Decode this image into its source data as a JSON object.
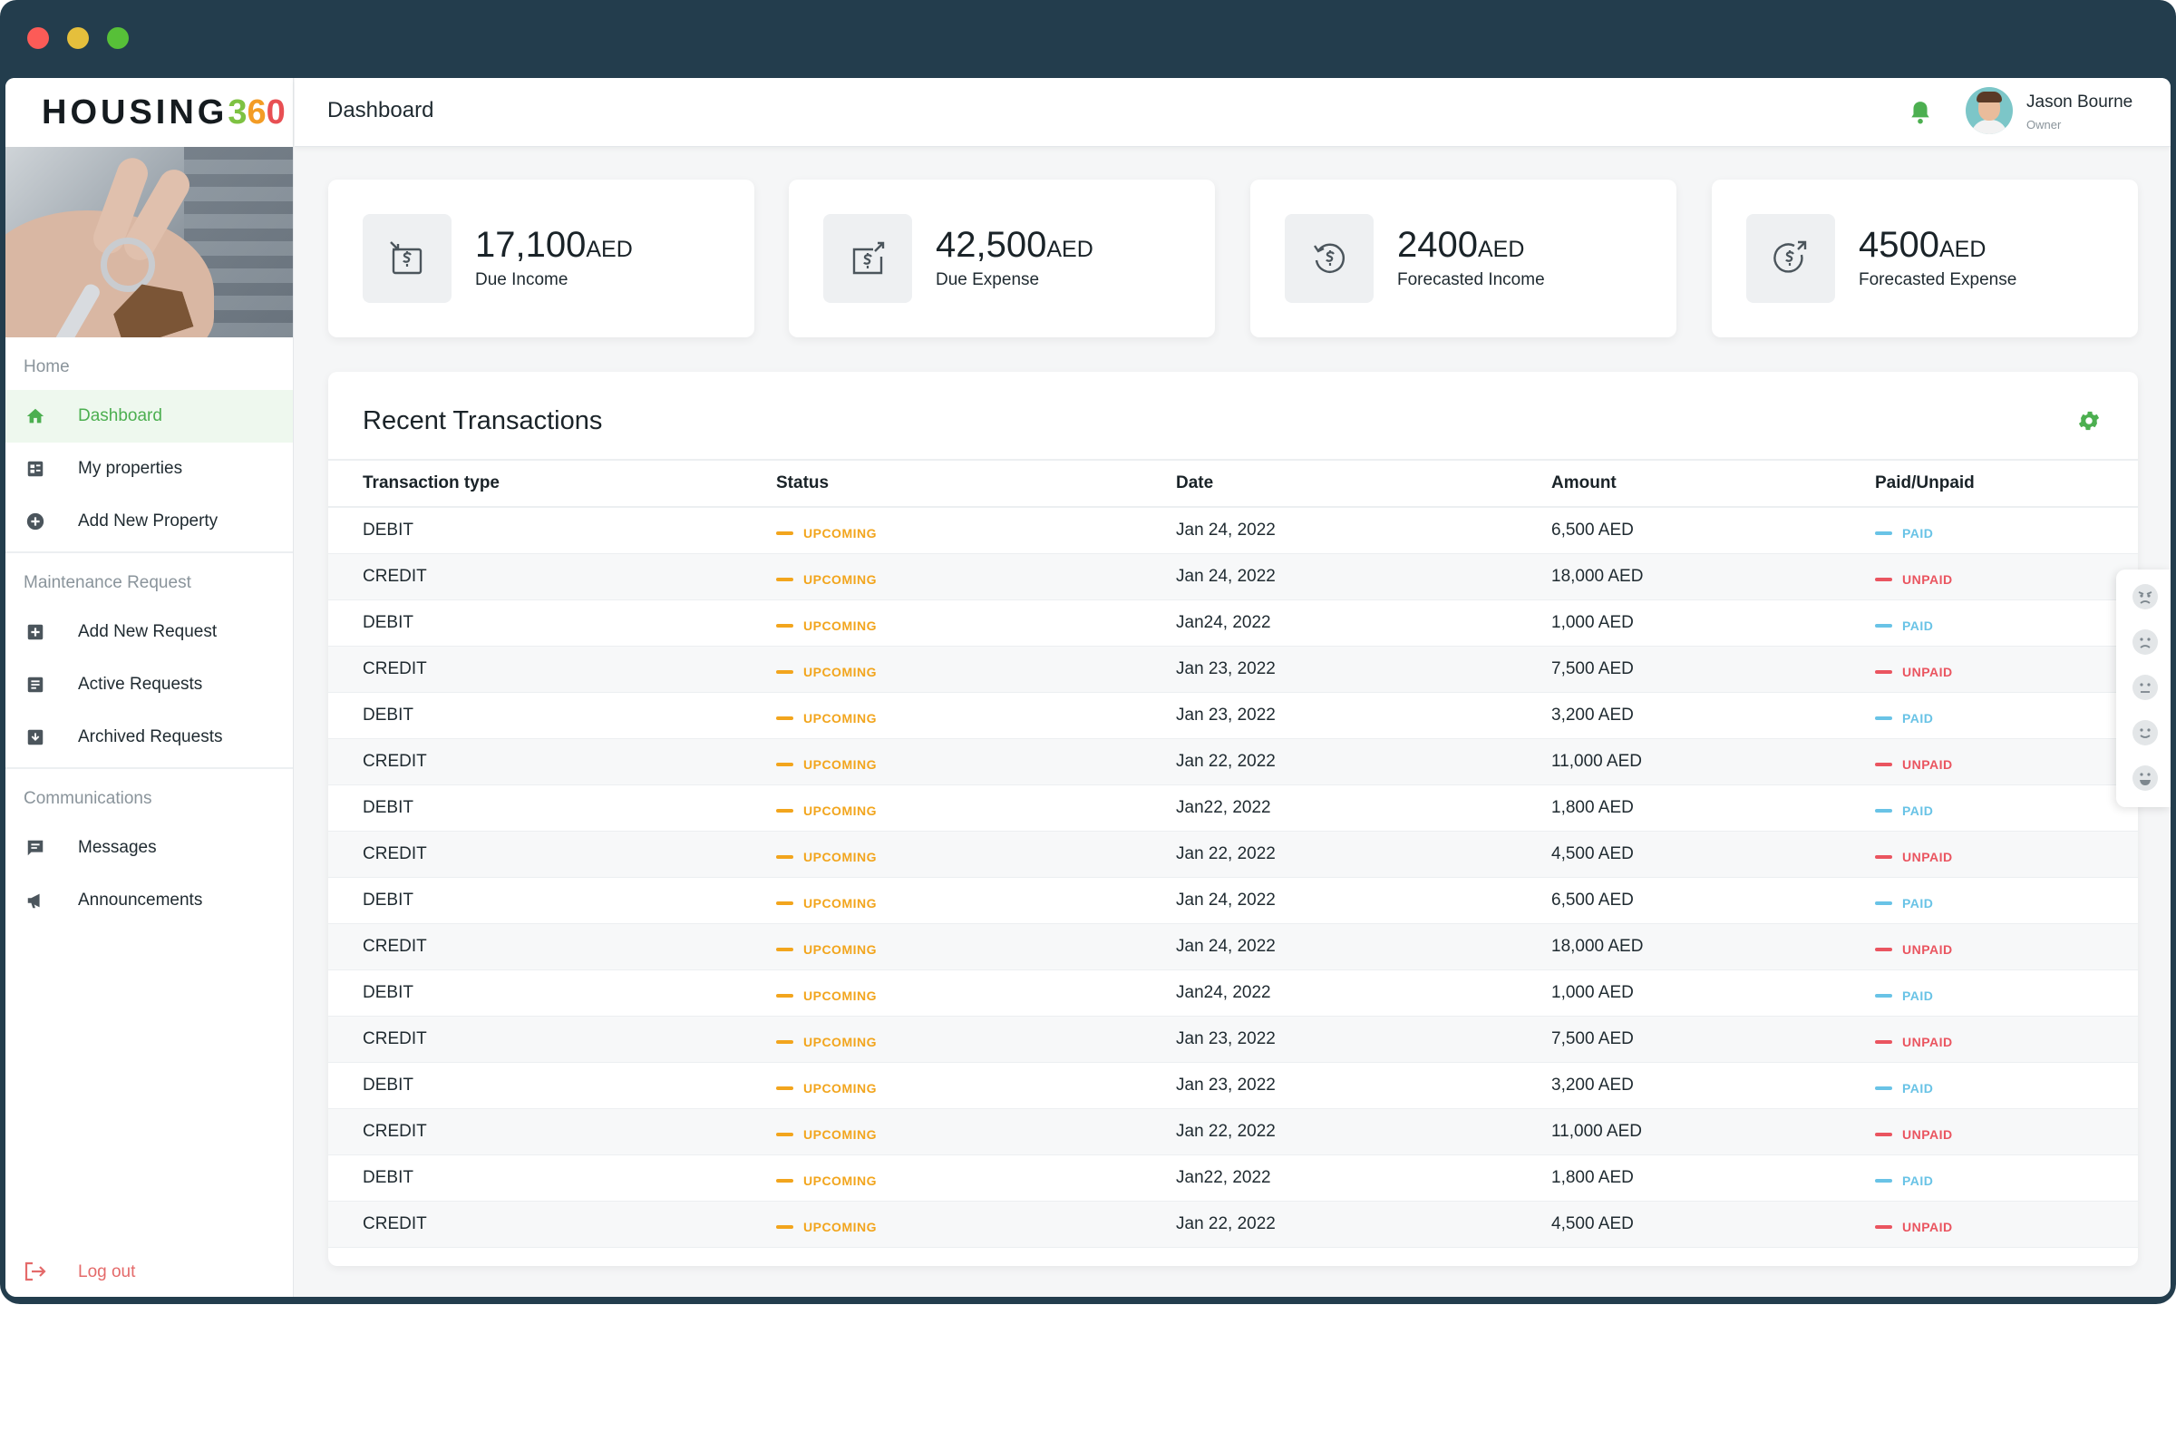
{
  "app": {
    "logo_word": "HOUSING",
    "logo_num": [
      "3",
      "6",
      "0"
    ]
  },
  "colors": {
    "frame": "#233d4d",
    "accent_green": "#4caf50",
    "upcoming": "#f2a51d",
    "paid": "#69c3e6",
    "unpaid": "#ea5560",
    "logout": "#e46a6a"
  },
  "sidebar": {
    "sections": [
      {
        "title": "Home",
        "items": [
          {
            "label": "Dashboard",
            "icon": "home-icon",
            "active": true
          },
          {
            "label": "My properties",
            "icon": "properties-icon",
            "active": false
          },
          {
            "label": "Add New Property",
            "icon": "add-circle-icon",
            "active": false
          }
        ]
      },
      {
        "title": "Maintenance Request",
        "items": [
          {
            "label": "Add New Request",
            "icon": "add-box-icon",
            "active": false
          },
          {
            "label": "Active Requests",
            "icon": "document-icon",
            "active": false
          },
          {
            "label": "Archived Requests",
            "icon": "archive-icon",
            "active": false
          }
        ]
      },
      {
        "title": "Communications",
        "items": [
          {
            "label": "Messages",
            "icon": "message-icon",
            "active": false
          },
          {
            "label": "Announcements",
            "icon": "megaphone-icon",
            "active": false
          }
        ]
      }
    ],
    "logout_label": "Log out"
  },
  "header": {
    "title": "Dashboard",
    "user": {
      "name": "Jason Bourne",
      "role": "Owner"
    }
  },
  "stats": [
    {
      "value": "17,100",
      "unit": "AED",
      "label": "Due Income",
      "icon": "income-icon"
    },
    {
      "value": "42,500",
      "unit": "AED",
      "label": "Due Expense",
      "icon": "expense-icon"
    },
    {
      "value": "2400",
      "unit": "AED",
      "label": "Forecasted Income",
      "icon": "forecast-income-icon"
    },
    {
      "value": "4500",
      "unit": "AED",
      "label": "Forecasted Expense",
      "icon": "forecast-expense-icon"
    }
  ],
  "transactions": {
    "title": "Recent Transactions",
    "columns": [
      "Transaction type",
      "Status",
      "Date",
      "Amount",
      "Paid/Unpaid"
    ],
    "rows": [
      {
        "type": "DEBIT",
        "status": "UPCOMING",
        "date": "Jan 24, 2022",
        "amount": "6,500 AED",
        "paid": "PAID"
      },
      {
        "type": "CREDIT",
        "status": "UPCOMING",
        "date": "Jan 24, 2022",
        "amount": "18,000 AED",
        "paid": "UNPAID"
      },
      {
        "type": "DEBIT",
        "status": "UPCOMING",
        "date": "Jan24, 2022",
        "amount": "1,000 AED",
        "paid": "PAID"
      },
      {
        "type": "CREDIT",
        "status": "UPCOMING",
        "date": "Jan 23, 2022",
        "amount": "7,500 AED",
        "paid": "UNPAID"
      },
      {
        "type": "DEBIT",
        "status": "UPCOMING",
        "date": "Jan 23, 2022",
        "amount": "3,200 AED",
        "paid": "PAID"
      },
      {
        "type": "CREDIT",
        "status": "UPCOMING",
        "date": "Jan 22, 2022",
        "amount": "11,000 AED",
        "paid": "UNPAID"
      },
      {
        "type": "DEBIT",
        "status": "UPCOMING",
        "date": "Jan22, 2022",
        "amount": "1,800 AED",
        "paid": "PAID"
      },
      {
        "type": "CREDIT",
        "status": "UPCOMING",
        "date": "Jan 22, 2022",
        "amount": "4,500 AED",
        "paid": "UNPAID"
      },
      {
        "type": "DEBIT",
        "status": "UPCOMING",
        "date": "Jan 24, 2022",
        "amount": "6,500 AED",
        "paid": "PAID"
      },
      {
        "type": "CREDIT",
        "status": "UPCOMING",
        "date": "Jan 24, 2022",
        "amount": "18,000 AED",
        "paid": "UNPAID"
      },
      {
        "type": "DEBIT",
        "status": "UPCOMING",
        "date": "Jan24, 2022",
        "amount": "1,000 AED",
        "paid": "PAID"
      },
      {
        "type": "CREDIT",
        "status": "UPCOMING",
        "date": "Jan 23, 2022",
        "amount": "7,500 AED",
        "paid": "UNPAID"
      },
      {
        "type": "DEBIT",
        "status": "UPCOMING",
        "date": "Jan 23, 2022",
        "amount": "3,200 AED",
        "paid": "PAID"
      },
      {
        "type": "CREDIT",
        "status": "UPCOMING",
        "date": "Jan 22, 2022",
        "amount": "11,000 AED",
        "paid": "UNPAID"
      },
      {
        "type": "DEBIT",
        "status": "UPCOMING",
        "date": "Jan22, 2022",
        "amount": "1,800 AED",
        "paid": "PAID"
      },
      {
        "type": "CREDIT",
        "status": "UPCOMING",
        "date": "Jan 22, 2022",
        "amount": "4,500 AED",
        "paid": "UNPAID"
      }
    ]
  },
  "feedback": {
    "faces": [
      "angry-face-icon",
      "sad-face-icon",
      "neutral-face-icon",
      "smile-face-icon",
      "happy-face-icon"
    ]
  }
}
